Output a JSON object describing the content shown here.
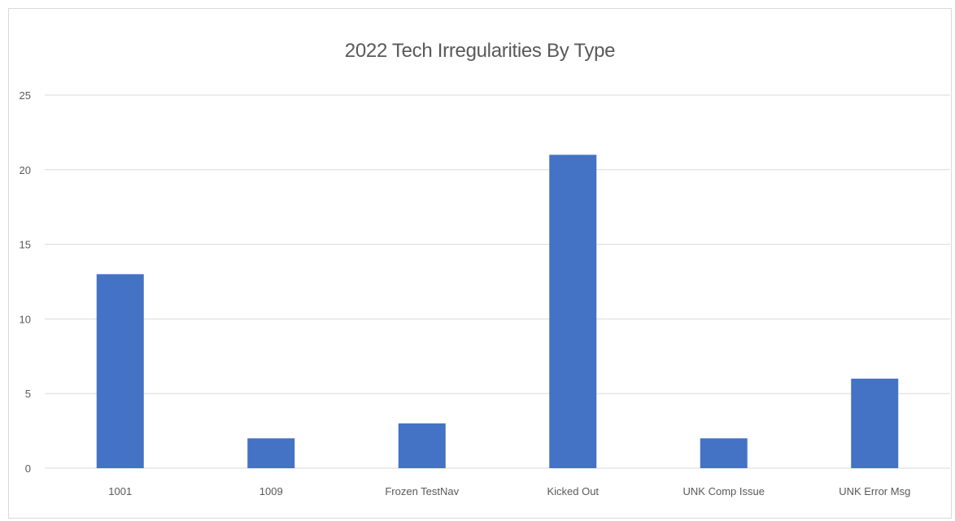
{
  "chart_data": {
    "type": "bar",
    "title": "2022 Tech Irregularities By Type",
    "categories": [
      "1001",
      "1009",
      "Frozen TestNav",
      "Kicked Out",
      "UNK Comp Issue",
      "UNK Error Msg"
    ],
    "values": [
      13,
      2,
      3,
      21,
      2,
      6
    ],
    "xlabel": "",
    "ylabel": "",
    "ylim": [
      0,
      25
    ],
    "yticks": [
      "0",
      "5",
      "10",
      "15",
      "20",
      "25"
    ],
    "grid": true,
    "legend": "none",
    "bar_color": "#4472c4",
    "grid_color": "#d9d9d9",
    "text_color": "#595959"
  }
}
